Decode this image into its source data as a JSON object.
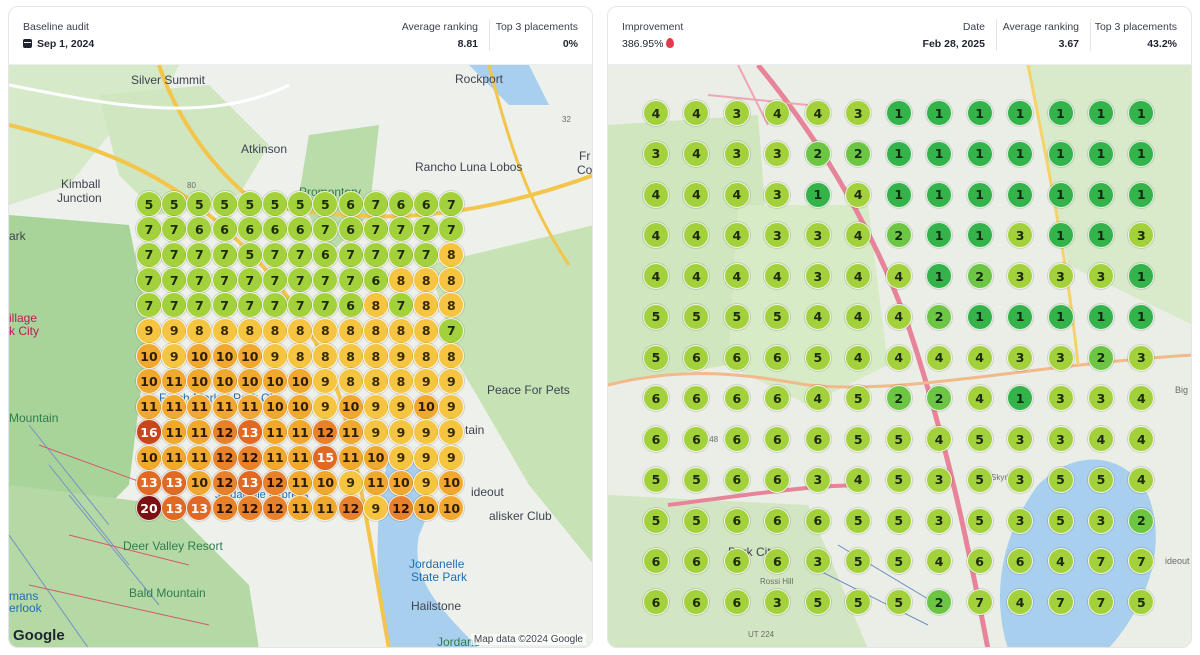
{
  "left": {
    "header": {
      "label": "Baseline audit",
      "date": "Sep 1, 2024",
      "avg_label": "Average ranking",
      "avg_value": "8.81",
      "top3_label": "Top 3 placements",
      "top3_value": "0%"
    },
    "places": {
      "silver_summit": "Silver Summit",
      "rockport": "Rockport",
      "atkinson": "Atkinson",
      "rancho": "Rancho Luna Lobos",
      "kimball": "Kimball",
      "junction": "Junction",
      "promontory": "Promontory",
      "park": "ark",
      "village": "illage",
      "city": "k City",
      "fresh_market": "Fresh Market Park City",
      "peace": "Peace For Pets",
      "mountain": "Mountain",
      "tain": "tain",
      "ideout": "ideout",
      "talisker": "alisker Club",
      "deer_valley": "Deer Valley Resort",
      "jordanelle1": "Jordanelle",
      "jordanelle2": "State Park",
      "bald": "Bald Mountain",
      "hailstone": "Hailstone",
      "jordane": "Jordane",
      "mans": "mans",
      "erlook": "erlook",
      "jordanelle_express": "Jordanelle Express",
      "fr": "Fr",
      "co": "Co",
      "route80": "80",
      "route32": "32"
    },
    "google": "Google",
    "map_data": "Map data ©2024 Google",
    "grid": [
      [
        5,
        5,
        5,
        5,
        5,
        5,
        5,
        5,
        6,
        7,
        6,
        6,
        7
      ],
      [
        7,
        7,
        6,
        6,
        6,
        6,
        6,
        7,
        6,
        7,
        7,
        7,
        7
      ],
      [
        7,
        7,
        7,
        7,
        5,
        7,
        7,
        6,
        7,
        7,
        7,
        7,
        8
      ],
      [
        7,
        7,
        7,
        7,
        7,
        7,
        7,
        7,
        7,
        6,
        8,
        8,
        8
      ],
      [
        7,
        7,
        7,
        7,
        7,
        7,
        7,
        7,
        6,
        8,
        7,
        8,
        8
      ],
      [
        9,
        9,
        8,
        8,
        8,
        8,
        8,
        8,
        8,
        8,
        8,
        8,
        7
      ],
      [
        10,
        9,
        10,
        10,
        10,
        9,
        8,
        8,
        8,
        8,
        9,
        8,
        8
      ],
      [
        10,
        11,
        10,
        10,
        10,
        10,
        10,
        9,
        8,
        8,
        8,
        9,
        9
      ],
      [
        11,
        11,
        11,
        11,
        11,
        10,
        10,
        9,
        10,
        9,
        9,
        10,
        9
      ],
      [
        16,
        11,
        11,
        12,
        13,
        11,
        11,
        12,
        11,
        9,
        9,
        9,
        9
      ],
      [
        10,
        11,
        11,
        12,
        12,
        11,
        11,
        15,
        11,
        10,
        9,
        9,
        9
      ],
      [
        13,
        13,
        10,
        12,
        13,
        12,
        11,
        10,
        9,
        11,
        10,
        9,
        10
      ],
      [
        20,
        13,
        13,
        12,
        12,
        12,
        11,
        11,
        12,
        9,
        12,
        10,
        10
      ]
    ]
  },
  "right": {
    "header": {
      "label": "Improvement",
      "improvement_value": "386.95%",
      "date_label": "Date",
      "date_value": "Feb 28, 2025",
      "avg_label": "Average ranking",
      "avg_value": "3.67",
      "top3_label": "Top 3 placements",
      "top3_value": "43.2%"
    },
    "places": {
      "park_city": "Park City",
      "ut148": "UT 148",
      "ut224": "UT 224",
      "big": "Big",
      "ideout": "ideout",
      "skyridge": "Skyri",
      "rossi": "Rossi Hill"
    },
    "grid": [
      [
        4,
        4,
        3,
        4,
        4,
        3,
        1,
        1,
        1,
        1,
        1,
        1,
        1
      ],
      [
        3,
        4,
        3,
        3,
        2,
        2,
        1,
        1,
        1,
        1,
        1,
        1,
        1
      ],
      [
        4,
        4,
        4,
        3,
        1,
        4,
        1,
        1,
        1,
        1,
        1,
        1,
        1
      ],
      [
        4,
        4,
        4,
        3,
        3,
        4,
        2,
        1,
        1,
        3,
        1,
        1,
        3
      ],
      [
        4,
        4,
        4,
        4,
        3,
        4,
        4,
        1,
        2,
        3,
        3,
        3,
        1
      ],
      [
        5,
        5,
        5,
        5,
        4,
        4,
        4,
        2,
        1,
        1,
        1,
        1,
        1
      ],
      [
        5,
        6,
        6,
        6,
        5,
        4,
        4,
        4,
        4,
        3,
        3,
        2,
        3
      ],
      [
        6,
        6,
        6,
        6,
        4,
        5,
        2,
        2,
        4,
        1,
        3,
        3,
        4
      ],
      [
        6,
        6,
        6,
        6,
        6,
        5,
        5,
        4,
        5,
        3,
        3,
        4,
        4
      ],
      [
        5,
        5,
        6,
        6,
        3,
        4,
        5,
        3,
        5,
        3,
        5,
        5,
        4
      ],
      [
        5,
        5,
        6,
        6,
        6,
        5,
        5,
        3,
        5,
        3,
        5,
        3,
        2
      ],
      [
        6,
        6,
        6,
        6,
        3,
        5,
        5,
        4,
        6,
        6,
        4,
        7,
        7
      ],
      [
        6,
        6,
        6,
        3,
        5,
        5,
        5,
        2,
        7,
        4,
        7,
        7,
        5
      ]
    ]
  },
  "colors": {
    "g1": "#34b34a",
    "g2": "#6cc644",
    "g3": "#a3d13b",
    "r8": "#f5c542",
    "r10": "#f0a92e",
    "r12": "#e8822a",
    "r13": "#e06a24",
    "r16": "#c8461c",
    "r20": "#7a1010"
  }
}
